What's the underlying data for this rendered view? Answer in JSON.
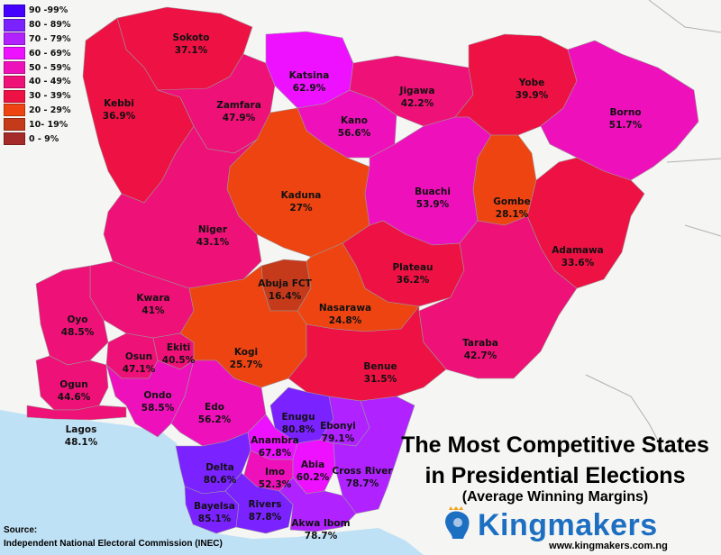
{
  "title_line1": "The Most Competitive States",
  "title_line2": "in Presidential Elections",
  "subtitle": "(Average Winning Margins)",
  "source_heading": "Source:",
  "source_text": "Independent National Electoral Commission (INEC)",
  "brand": "Kingmakers",
  "website": "www.kingmakers.com.ng",
  "colors": {
    "ocean": "#bfe1f5",
    "land_outside": "#f5f5f3",
    "border": "#9a9a9a",
    "brand": "#1d6fc2"
  },
  "legend": [
    {
      "label": "90 -99%",
      "color": "#4400ff"
    },
    {
      "label": "80 - 89%",
      "color": "#7a22ff"
    },
    {
      "label": "70 - 79%",
      "color": "#b022ff"
    },
    {
      "label": "60 - 69%",
      "color": "#ee11ff"
    },
    {
      "label": "50 - 59%",
      "color": "#ee11bb"
    },
    {
      "label": "40 - 49%",
      "color": "#ee1177"
    },
    {
      "label": "30 - 39%",
      "color": "#ee1144"
    },
    {
      "label": "20 - 29%",
      "color": "#ee4411"
    },
    {
      "label": "10- 19%",
      "color": "#c53a1a"
    },
    {
      "label": "0 - 9%",
      "color": "#a52a2a"
    }
  ],
  "states": [
    {
      "name": "Sokoto",
      "margin": "37.1%",
      "color": "#ee1144"
    },
    {
      "name": "Kebbi",
      "margin": "36.9%",
      "color": "#ee1144"
    },
    {
      "name": "Zamfara",
      "margin": "47.9%",
      "color": "#ee1177"
    },
    {
      "name": "Katsina",
      "margin": "62.9%",
      "color": "#ee11ff"
    },
    {
      "name": "Kano",
      "margin": "56.6%",
      "color": "#ee11bb"
    },
    {
      "name": "Jigawa",
      "margin": "42.2%",
      "color": "#ee1177"
    },
    {
      "name": "Yobe",
      "margin": "39.9%",
      "color": "#ee1144"
    },
    {
      "name": "Borno",
      "margin": "51.7%",
      "color": "#ee11bb"
    },
    {
      "name": "Kaduna",
      "margin": "27%",
      "color": "#ee4411"
    },
    {
      "name": "Buachi",
      "margin": "53.9%",
      "color": "#ee11bb"
    },
    {
      "name": "Gombe",
      "margin": "28.1%",
      "color": "#ee4411"
    },
    {
      "name": "Niger",
      "margin": "43.1%",
      "color": "#ee1177"
    },
    {
      "name": "Adamawa",
      "margin": "33.6%",
      "color": "#ee1144"
    },
    {
      "name": "Plateau",
      "margin": "36.2%",
      "color": "#ee1144"
    },
    {
      "name": "Abuja FCT",
      "margin": "16.4%",
      "color": "#c53a1a"
    },
    {
      "name": "Kwara",
      "margin": "41%",
      "color": "#ee1177"
    },
    {
      "name": "Nasarawa",
      "margin": "24.8%",
      "color": "#ee4411"
    },
    {
      "name": "Oyo",
      "margin": "48.5%",
      "color": "#ee1177"
    },
    {
      "name": "Taraba",
      "margin": "42.7%",
      "color": "#ee1177"
    },
    {
      "name": "Osun",
      "margin": "47.1%",
      "color": "#ee1177"
    },
    {
      "name": "Ekiti",
      "margin": "40.5%",
      "color": "#ee1177"
    },
    {
      "name": "Kogi",
      "margin": "25.7%",
      "color": "#ee4411"
    },
    {
      "name": "Benue",
      "margin": "31.5%",
      "color": "#ee1144"
    },
    {
      "name": "Ogun",
      "margin": "44.6%",
      "color": "#ee1177"
    },
    {
      "name": "Ondo",
      "margin": "58.5%",
      "color": "#ee11bb"
    },
    {
      "name": "Edo",
      "margin": "56.2%",
      "color": "#ee11bb"
    },
    {
      "name": "Enugu",
      "margin": "80.8%",
      "color": "#7a22ff"
    },
    {
      "name": "Ebonyi",
      "margin": "79.1%",
      "color": "#b022ff"
    },
    {
      "name": "Lagos",
      "margin": "48.1%",
      "color": "#ee1177"
    },
    {
      "name": "Anambra",
      "margin": "67.8%",
      "color": "#ee11ff"
    },
    {
      "name": "Delta",
      "margin": "80.6%",
      "color": "#7a22ff"
    },
    {
      "name": "Imo",
      "margin": "52.3%",
      "color": "#ee11bb"
    },
    {
      "name": "Abia",
      "margin": "60.2%",
      "color": "#ee11ff"
    },
    {
      "name": "Cross River",
      "margin": "78.7%",
      "color": "#b022ff"
    },
    {
      "name": "Bayelsa",
      "margin": "85.1%",
      "color": "#7a22ff"
    },
    {
      "name": "Rivers",
      "margin": "87.8%",
      "color": "#7a22ff"
    },
    {
      "name": "Akwa Ibom",
      "margin": "78.7%",
      "color": "#b022ff"
    }
  ]
}
